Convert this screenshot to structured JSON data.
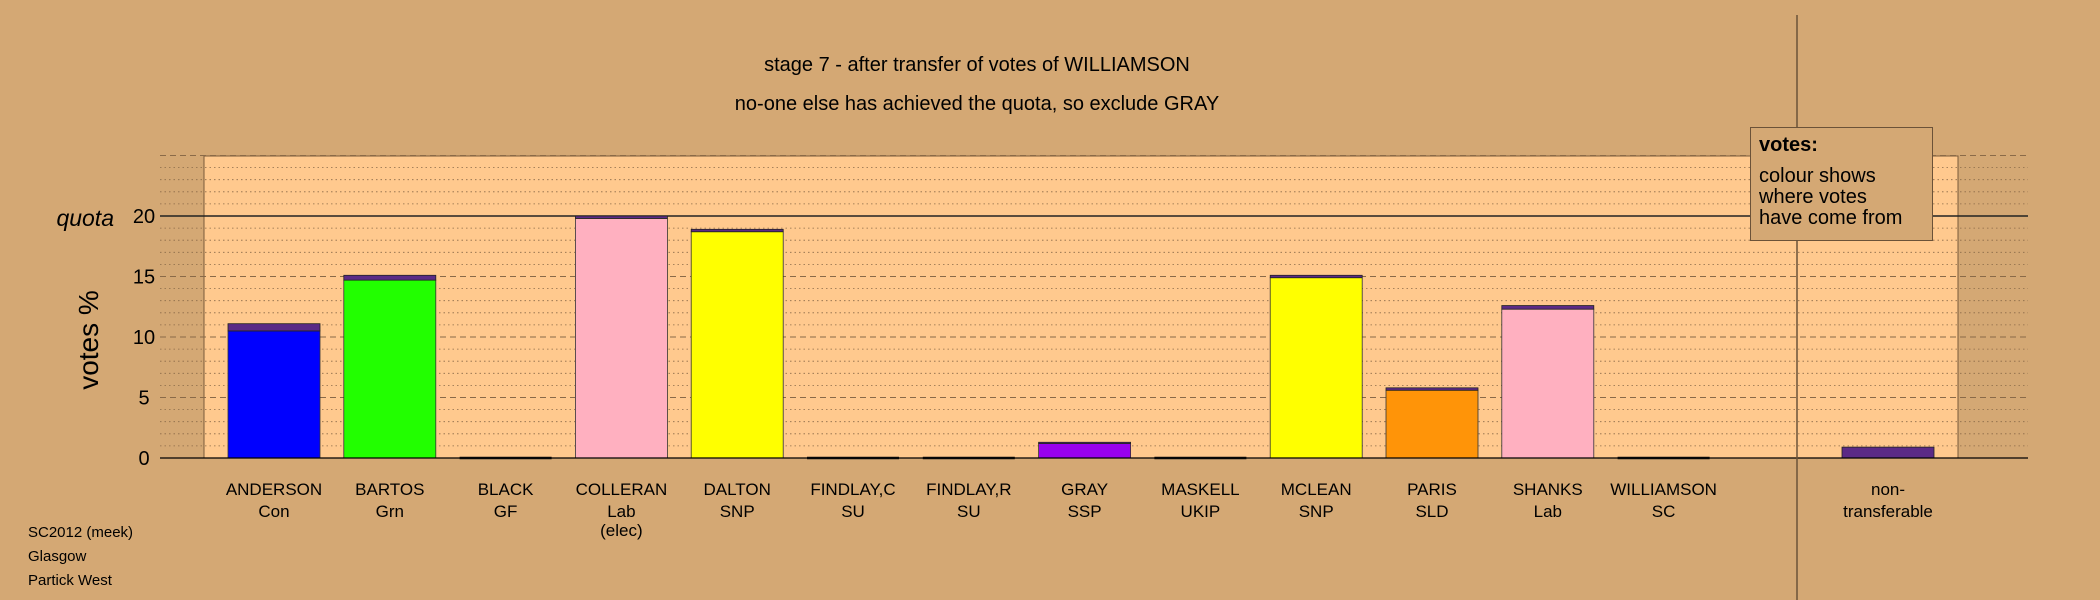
{
  "title": "stage 7 - after transfer of votes of WILLIAMSON",
  "subtitle": "no-one else has achieved the quota, so exclude GRAY",
  "legend": {
    "title": "votes:",
    "lines": [
      "colour shows",
      "where votes",
      "have come from"
    ]
  },
  "footnote": [
    "SC2012 (meek)",
    "Glasgow",
    "Partick West"
  ],
  "chart_data": {
    "type": "bar",
    "ylabel": "votes %",
    "quota_label": "quota",
    "quota": 20,
    "ylim": [
      0,
      25
    ],
    "yticks": [
      0,
      5,
      10,
      15,
      20
    ],
    "grid": "dashed lines at major ticks, dotted minor lines",
    "categories": [
      {
        "name": "ANDERSON",
        "party": "Con",
        "note": "",
        "value": 11.1,
        "color": "#0000FF",
        "own": 10.5,
        "transfer": 0.6
      },
      {
        "name": "BARTOS",
        "party": "Grn",
        "note": "",
        "value": 15.1,
        "color": "#22FF00",
        "own": 14.7,
        "transfer": 0.4
      },
      {
        "name": "BLACK",
        "party": "GF",
        "note": "",
        "value": 0,
        "color": "#888888",
        "own": 0,
        "transfer": 0
      },
      {
        "name": "COLLERAN",
        "party": "Lab",
        "note": "(elec)",
        "value": 20.0,
        "color": "#FFB0C0",
        "own": 19.8,
        "transfer": 0.2
      },
      {
        "name": "DALTON",
        "party": "SNP",
        "note": "",
        "value": 18.9,
        "color": "#FFFF00",
        "own": 18.7,
        "transfer": 0.2
      },
      {
        "name": "FINDLAY,C",
        "party": "SU",
        "note": "",
        "value": 0,
        "color": "#888888",
        "own": 0,
        "transfer": 0
      },
      {
        "name": "FINDLAY,R",
        "party": "SU",
        "note": "",
        "value": 0,
        "color": "#888888",
        "own": 0,
        "transfer": 0
      },
      {
        "name": "GRAY",
        "party": "SSP",
        "note": "",
        "value": 1.3,
        "color": "#9900EE",
        "own": 1.2,
        "transfer": 0.1
      },
      {
        "name": "MASKELL",
        "party": "UKIP",
        "note": "",
        "value": 0,
        "color": "#888888",
        "own": 0,
        "transfer": 0
      },
      {
        "name": "MCLEAN",
        "party": "SNP",
        "note": "",
        "value": 15.1,
        "color": "#FFFF00",
        "own": 14.9,
        "transfer": 0.2
      },
      {
        "name": "PARIS",
        "party": "SLD",
        "note": "",
        "value": 5.8,
        "color": "#FF9408",
        "own": 5.6,
        "transfer": 0.2
      },
      {
        "name": "SHANKS",
        "party": "Lab",
        "note": "",
        "value": 12.6,
        "color": "#FFB0C0",
        "own": 12.3,
        "transfer": 0.3
      },
      {
        "name": "WILLIAMSON",
        "party": "SC",
        "note": "",
        "value": 0,
        "color": "#888888",
        "own": 0,
        "transfer": 0
      }
    ],
    "nontransferable": {
      "line1": "non-",
      "line2": "transferable",
      "value": 0.9,
      "color": "#5B2A86"
    },
    "transfer_color": "#5B2A86"
  }
}
